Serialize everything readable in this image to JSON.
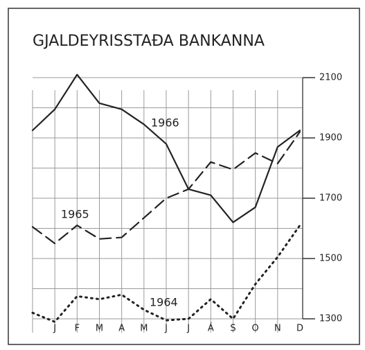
{
  "chart_data": {
    "type": "line",
    "title": "GJALDEYRISSTAÐA BANKANNA",
    "categories": [
      null,
      "J",
      "F",
      "M",
      "A",
      "M",
      "J",
      "J",
      "Á",
      "S",
      "O",
      "N",
      "D"
    ],
    "series": [
      {
        "name": "1966",
        "color": "#222222",
        "style": "solid",
        "values": [
          1925,
          1995,
          2110,
          2015,
          1995,
          1945,
          1880,
          1730,
          1710,
          1620,
          1670,
          1870,
          1925
        ]
      },
      {
        "name": "1965",
        "color": "#222222",
        "style": "dashed",
        "values": [
          1605,
          1550,
          1610,
          1565,
          1570,
          1635,
          1700,
          1730,
          1820,
          1795,
          1850,
          1815,
          1920
        ]
      },
      {
        "name": "1964",
        "color": "#222222",
        "style": "dotted",
        "values": [
          1320,
          1290,
          1375,
          1365,
          1380,
          1330,
          1295,
          1300,
          1365,
          1300,
          1415,
          1505,
          1610
        ]
      }
    ],
    "ylim": [
      1300,
      2100
    ],
    "yticks": [
      1300,
      1500,
      1700,
      1900,
      2100
    ],
    "minor_yticks": [
      1400,
      1600,
      1800,
      2000
    ],
    "y_axis_side": "right",
    "grid": true
  }
}
